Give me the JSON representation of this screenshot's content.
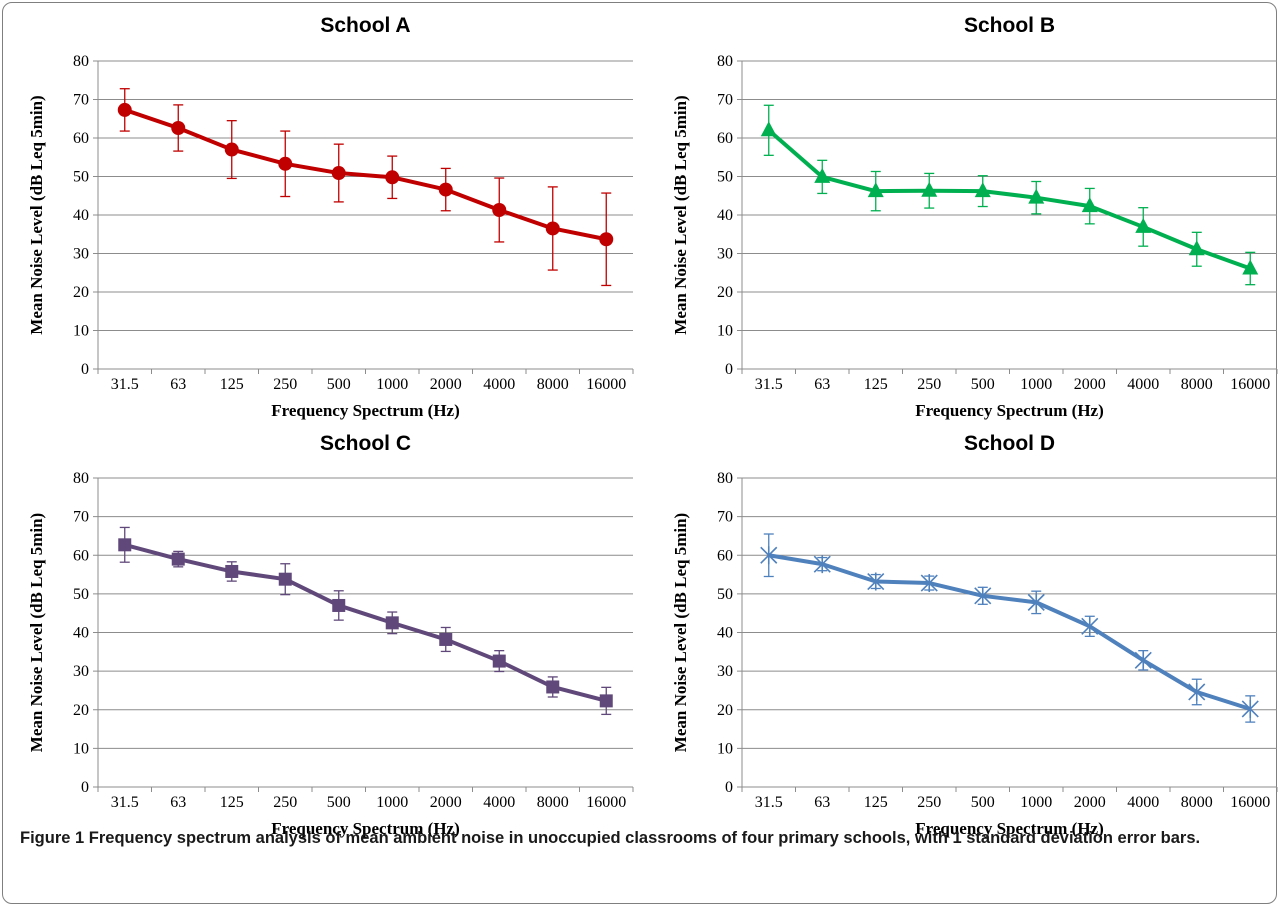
{
  "caption": {
    "label": "Figure 1",
    "text": "Frequency spectrum analysis of mean ambient noise in unoccupied classrooms of four primary schools",
    "tail": ", with 1 standard deviation error bars."
  },
  "chart_data": [
    {
      "type": "line",
      "title": "School A",
      "xlabel": "Frequency Spectrum (Hz)",
      "ylabel": "Mean Noise Level (dB Leq  5min)",
      "categories": [
        "31.5",
        "63",
        "125",
        "250",
        "500",
        "1000",
        "2000",
        "4000",
        "8000",
        "16000"
      ],
      "ylim": [
        0,
        80
      ],
      "yticks": [
        0,
        10,
        20,
        30,
        40,
        50,
        60,
        70,
        80
      ],
      "grid": true,
      "color": "#c00000",
      "marker": "circle",
      "series": [
        {
          "values": [
            67.3,
            62.6,
            57.0,
            53.3,
            50.9,
            49.8,
            46.6,
            41.3,
            36.5,
            33.7
          ],
          "err": [
            5.5,
            6.0,
            7.5,
            8.5,
            7.5,
            5.5,
            5.5,
            8.3,
            10.8,
            12.0
          ]
        }
      ]
    },
    {
      "type": "line",
      "title": "School B",
      "xlabel": "Frequency Spectrum (Hz)",
      "ylabel": "Mean Noise Level (dB Leq  5min)",
      "categories": [
        "31.5",
        "63",
        "125",
        "250",
        "500",
        "1000",
        "2000",
        "4000",
        "8000",
        "16000"
      ],
      "ylim": [
        0,
        80
      ],
      "yticks": [
        0,
        10,
        20,
        30,
        40,
        50,
        60,
        70,
        80
      ],
      "grid": true,
      "color": "#00b050",
      "marker": "triangle",
      "series": [
        {
          "values": [
            62.0,
            49.9,
            46.2,
            46.3,
            46.2,
            44.5,
            42.3,
            36.9,
            31.1,
            26.1
          ],
          "err": [
            6.5,
            4.3,
            5.1,
            4.5,
            4.0,
            4.2,
            4.6,
            5.0,
            4.4,
            4.2
          ]
        }
      ]
    },
    {
      "type": "line",
      "title": "School C",
      "xlabel": "Frequency Spectrum (Hz)",
      "ylabel": "Mean Noise Level (dB Leq  5min)",
      "categories": [
        "31.5",
        "63",
        "125",
        "250",
        "500",
        "1000",
        "2000",
        "4000",
        "8000",
        "16000"
      ],
      "ylim": [
        0,
        80
      ],
      "yticks": [
        0,
        10,
        20,
        30,
        40,
        50,
        60,
        70,
        80
      ],
      "grid": true,
      "color": "#60497a",
      "marker": "square",
      "series": [
        {
          "values": [
            62.7,
            59.0,
            55.8,
            53.8,
            47.0,
            42.5,
            38.2,
            32.6,
            25.9,
            22.3
          ],
          "err": [
            4.5,
            2.0,
            2.5,
            4.0,
            3.8,
            2.8,
            3.1,
            2.7,
            2.6,
            3.5
          ]
        }
      ]
    },
    {
      "type": "line",
      "title": "School D",
      "xlabel": "Frequency Spectrum (Hz)",
      "ylabel": "Mean Noise Level (dB Leq  5min)",
      "categories": [
        "31.5",
        "63",
        "125",
        "250",
        "500",
        "1000",
        "2000",
        "4000",
        "8000",
        "16000"
      ],
      "ylim": [
        0,
        80
      ],
      "yticks": [
        0,
        10,
        20,
        30,
        40,
        50,
        60,
        70,
        80
      ],
      "grid": true,
      "color": "#4f81bd",
      "marker": "star",
      "series": [
        {
          "values": [
            60.0,
            57.7,
            53.2,
            52.8,
            49.5,
            47.8,
            41.6,
            32.8,
            24.6,
            20.2
          ],
          "err": [
            5.5,
            1.7,
            1.8,
            1.8,
            2.2,
            2.9,
            2.6,
            2.5,
            3.3,
            3.4
          ]
        }
      ]
    }
  ]
}
